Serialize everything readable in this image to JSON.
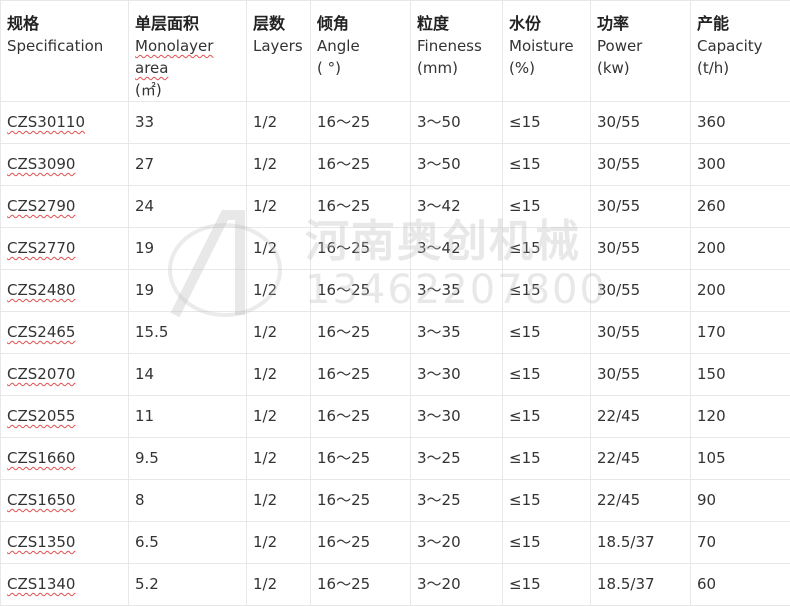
{
  "headers": [
    {
      "zh": "规格",
      "en": "Specification",
      "unit": ""
    },
    {
      "zh": "单层面积",
      "en": "Monolayer area",
      "unit": "(㎡)"
    },
    {
      "zh": "层数",
      "en": "Layers",
      "unit": ""
    },
    {
      "zh": "倾角",
      "en": "Angle",
      "unit": "( °)"
    },
    {
      "zh": "粒度",
      "en": "Fineness",
      "unit": "(mm)"
    },
    {
      "zh": "水份",
      "en": "Moisture",
      "unit": "(%)"
    },
    {
      "zh": "功率",
      "en": "Power",
      "unit": "(kw)"
    },
    {
      "zh": "产能",
      "en": "Capacity",
      "unit": "(t/h)"
    }
  ],
  "rows": [
    [
      "CZS30110",
      "33",
      "1/2",
      "16～25",
      "3～50",
      "≤15",
      "30/55",
      "360"
    ],
    [
      "CZS3090",
      "27",
      "1/2",
      "16～25",
      "3～50",
      "≤15",
      "30/55",
      "300"
    ],
    [
      "CZS2790",
      "24",
      "1/2",
      "16～25",
      "3～42",
      "≤15",
      "30/55",
      "260"
    ],
    [
      "CZS2770",
      "19",
      "1/2",
      "16～25",
      "3～42",
      "≤15",
      "30/55",
      "200"
    ],
    [
      "CZS2480",
      "19",
      "1/2",
      "16～25",
      "3～35",
      "≤15",
      "30/55",
      "200"
    ],
    [
      "CZS2465",
      "15.5",
      "1/2",
      "16～25",
      "3～35",
      "≤15",
      "30/55",
      "170"
    ],
    [
      "CZS2070",
      "14",
      "1/2",
      "16～25",
      "3～30",
      "≤15",
      "30/55",
      "150"
    ],
    [
      "CZS2055",
      "11",
      "1/2",
      "16～25",
      "3～30",
      "≤15",
      "22/45",
      "120"
    ],
    [
      "CZS1660",
      "9.5",
      "1/2",
      "16～25",
      "3～25",
      "≤15",
      "22/45",
      "105"
    ],
    [
      "CZS1650",
      "8",
      "1/2",
      "16～25",
      "3～25",
      "≤15",
      "22/45",
      "90"
    ],
    [
      "CZS1350",
      "6.5",
      "1/2",
      "16～25",
      "3～20",
      "≤15",
      "18.5/37",
      "70"
    ],
    [
      "CZS1340",
      "5.2",
      "1/2",
      "16～25",
      "3～20",
      "≤15",
      "18.5/37",
      "60"
    ]
  ],
  "watermark": {
    "name": "河南奥创机械",
    "phone": "13462207800"
  }
}
